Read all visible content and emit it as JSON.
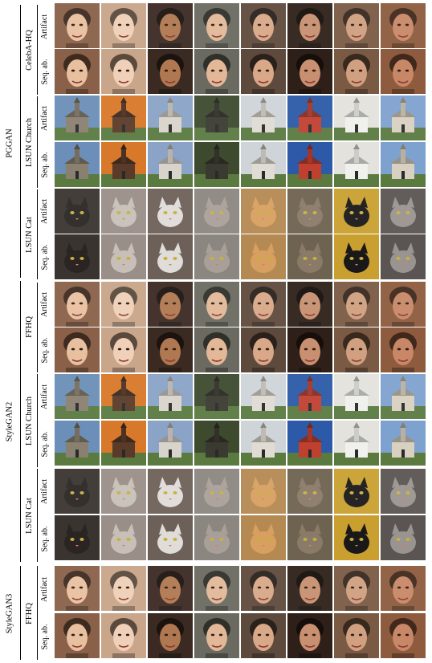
{
  "models": [
    {
      "name": "PGGAN",
      "datasets": [
        {
          "name": "CelebA-HQ",
          "rows": [
            {
              "label": "Artifact"
            },
            {
              "label": "Seq. ab."
            }
          ]
        },
        {
          "name": "LSUN Church",
          "rows": [
            {
              "label": "Artifact"
            },
            {
              "label": "Seq. ab."
            }
          ]
        },
        {
          "name": "LSUN Cat",
          "rows": [
            {
              "label": "Artifact"
            },
            {
              "label": "Seq. ab."
            }
          ]
        }
      ]
    },
    {
      "name": "StyleGAN2",
      "datasets": [
        {
          "name": "FFHQ",
          "rows": [
            {
              "label": "Artifact"
            },
            {
              "label": "Seq. ab."
            }
          ]
        },
        {
          "name": "LSUN Church",
          "rows": [
            {
              "label": "Artifact"
            },
            {
              "label": "Seq. ab."
            }
          ]
        },
        {
          "name": "LSUN Cat",
          "rows": [
            {
              "label": "Artifact"
            },
            {
              "label": "Seq. ab."
            }
          ]
        }
      ]
    },
    {
      "name": "StyleGAN3",
      "datasets": [
        {
          "name": "FFHQ",
          "rows": [
            {
              "label": "Artifact"
            },
            {
              "label": "Seq. ab."
            }
          ]
        }
      ]
    }
  ],
  "tile_colors": {
    "face": [
      "#8a6048",
      "#c9a58a",
      "#3b2a22",
      "#6a6a60",
      "#5e4a3c",
      "#2e2018",
      "#7b5a43",
      "#8e5b3e"
    ],
    "church": [
      "#6b8fb8",
      "#d8782a",
      "#8aa3c6",
      "#3d4a2e",
      "#cfd4d8",
      "#2c5aa8",
      "#e3e2dd",
      "#7ea2cf"
    ],
    "cat": [
      "#3a3430",
      "#9a8e88",
      "#6d6058",
      "#8c8680",
      "#b58a52",
      "#6e6250",
      "#c9a030",
      "#5a5552"
    ]
  }
}
